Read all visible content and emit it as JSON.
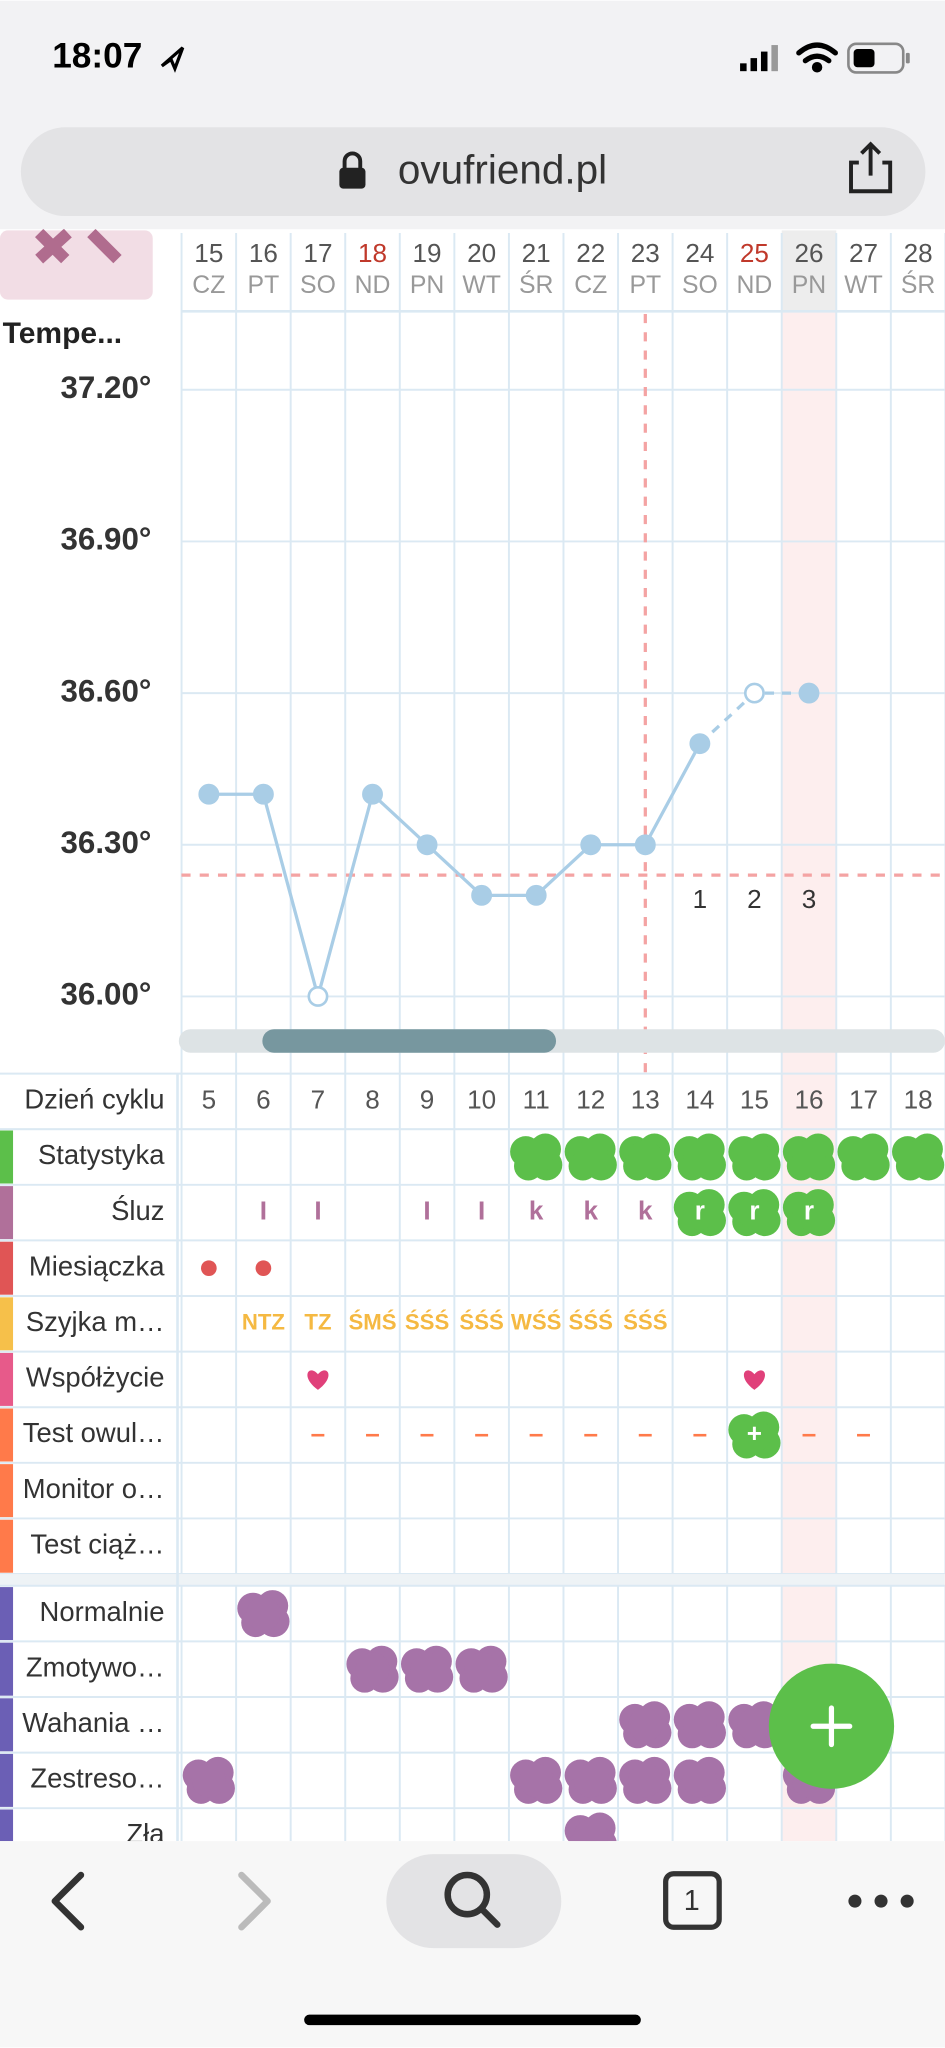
{
  "status_bar": {
    "time": "18:07"
  },
  "address_bar": {
    "url": "ovufriend.pl"
  },
  "days": {
    "dates": [
      15,
      16,
      17,
      18,
      19,
      20,
      21,
      22,
      23,
      24,
      25,
      26,
      27,
      28
    ],
    "weekdays": [
      "CZ",
      "PT",
      "SO",
      "ND",
      "PN",
      "WT",
      "ŚR",
      "CZ",
      "PT",
      "SO",
      "ND",
      "PN",
      "WT",
      "ŚR"
    ],
    "sunday_color": "#c0392b",
    "sunday_indices": [
      3,
      10
    ]
  },
  "chart_data": {
    "type": "line",
    "y_label": "Tempe...",
    "series": [
      {
        "name": "Temperatura",
        "color": "#a9cde6",
        "values": [
          36.4,
          36.4,
          36.0,
          36.4,
          36.3,
          36.2,
          36.2,
          36.3,
          36.3,
          36.5,
          36.6,
          36.6,
          null,
          null
        ]
      }
    ],
    "hollow_indices": [
      2,
      10
    ],
    "dashed_from": 9,
    "ylim": [
      35.93,
      37.35
    ],
    "yticks": [
      {
        "value": 36.0,
        "label": "36.00°"
      },
      {
        "value": 36.3,
        "label": "36.30°"
      },
      {
        "value": 36.6,
        "label": "36.60°"
      },
      {
        "value": 36.9,
        "label": "36.90°"
      },
      {
        "value": 37.2,
        "label": "37.20°"
      }
    ],
    "grid": true,
    "coverline": 36.24,
    "ovulation_index": 8,
    "post_ovulation_labels": [
      "1",
      "2",
      "3"
    ],
    "today_index": 11
  },
  "tracker": {
    "cycle_label": "Dzień cyklu",
    "cycle_days": [
      5,
      6,
      7,
      8,
      9,
      10,
      11,
      12,
      13,
      14,
      15,
      16,
      17,
      18
    ],
    "groups": [
      [
        {
          "label": "Statystyka",
          "color": "#5cbf4a",
          "cells": [
            null,
            null,
            null,
            null,
            null,
            null,
            {
              "mark": "blob"
            },
            {
              "mark": "blob"
            },
            {
              "mark": "blob"
            },
            {
              "mark": "blob"
            },
            {
              "mark": "blob"
            },
            {
              "mark": "blob"
            },
            {
              "mark": "blob"
            },
            {
              "mark": "blob"
            }
          ]
        },
        {
          "label": "Śluz",
          "color": "#b0709a",
          "cells": [
            null,
            {
              "text": "I"
            },
            {
              "text": "I"
            },
            null,
            {
              "text": "I"
            },
            {
              "text": "I"
            },
            {
              "text": "k"
            },
            {
              "text": "k"
            },
            {
              "text": "k"
            },
            {
              "mark": "blob",
              "text": "r"
            },
            {
              "mark": "blob",
              "text": "r"
            },
            {
              "mark": "blob",
              "text": "r"
            },
            null,
            null
          ]
        },
        {
          "label": "Miesiączka",
          "color": "#e05555",
          "cells": [
            {
              "mark": "dot"
            },
            {
              "mark": "dot"
            },
            null,
            null,
            null,
            null,
            null,
            null,
            null,
            null,
            null,
            null,
            null,
            null
          ]
        },
        {
          "label": "Szyjka m…",
          "color": "#f6c04a",
          "cells": [
            null,
            {
              "text": "NTZ"
            },
            {
              "text": "TZ"
            },
            {
              "text": "ŚMŚ"
            },
            {
              "text": "ŚŚŚ"
            },
            {
              "text": "ŚŚŚ"
            },
            {
              "text": "WŚŚ"
            },
            {
              "text": "ŚŚŚ"
            },
            {
              "text": "ŚŚŚ"
            },
            null,
            null,
            null,
            null,
            null
          ]
        },
        {
          "label": "Współżycie",
          "color": "#e75a8a",
          "cells": [
            null,
            null,
            {
              "mark": "heart"
            },
            null,
            null,
            null,
            null,
            null,
            null,
            null,
            {
              "mark": "heart"
            },
            null,
            null,
            null
          ]
        },
        {
          "label": "Test owul…",
          "color": "#ff7a4a",
          "cells": [
            null,
            null,
            {
              "text": "–"
            },
            {
              "text": "–"
            },
            {
              "text": "–"
            },
            {
              "text": "–"
            },
            {
              "text": "–"
            },
            {
              "text": "–"
            },
            {
              "text": "–"
            },
            {
              "text": "–"
            },
            {
              "mark": "blob",
              "text": "+"
            },
            {
              "text": "–"
            },
            {
              "text": "–"
            },
            null
          ]
        },
        {
          "label": "Monitor o…",
          "color": "#ff7a4a",
          "cells": [
            null,
            null,
            null,
            null,
            null,
            null,
            null,
            null,
            null,
            null,
            null,
            null,
            null,
            null
          ]
        },
        {
          "label": "Test ciąż…",
          "color": "#ff7a4a",
          "cells": [
            null,
            null,
            null,
            null,
            null,
            null,
            null,
            null,
            null,
            null,
            null,
            null,
            null,
            null
          ]
        }
      ],
      [
        {
          "label": "Normalnie",
          "color": "#6b5fb5",
          "cells": [
            null,
            {
              "mark": "mood"
            },
            null,
            null,
            null,
            null,
            null,
            null,
            null,
            null,
            null,
            null,
            null,
            null
          ]
        },
        {
          "label": "Zmotywo…",
          "color": "#6b5fb5",
          "cells": [
            null,
            null,
            null,
            {
              "mark": "mood"
            },
            {
              "mark": "mood"
            },
            {
              "mark": "mood"
            },
            null,
            null,
            null,
            null,
            null,
            null,
            null,
            null
          ]
        },
        {
          "label": "Wahania …",
          "color": "#6b5fb5",
          "cells": [
            null,
            null,
            null,
            null,
            null,
            null,
            null,
            null,
            {
              "mark": "mood"
            },
            {
              "mark": "mood"
            },
            {
              "mark": "mood"
            },
            null,
            null,
            null
          ]
        },
        {
          "label": "Zestreso…",
          "color": "#6b5fb5",
          "cells": [
            {
              "mark": "mood"
            },
            null,
            null,
            null,
            null,
            null,
            {
              "mark": "mood"
            },
            {
              "mark": "mood"
            },
            {
              "mark": "mood"
            },
            {
              "mark": "mood"
            },
            null,
            {
              "mark": "mood"
            },
            null,
            null
          ]
        },
        {
          "label": "Zła",
          "color": "#6b5fb5",
          "cells": [
            null,
            null,
            null,
            null,
            null,
            null,
            null,
            {
              "mark": "mood"
            },
            null,
            null,
            null,
            null,
            null,
            null
          ]
        }
      ]
    ]
  },
  "toolbar": {
    "tabs": 1
  }
}
